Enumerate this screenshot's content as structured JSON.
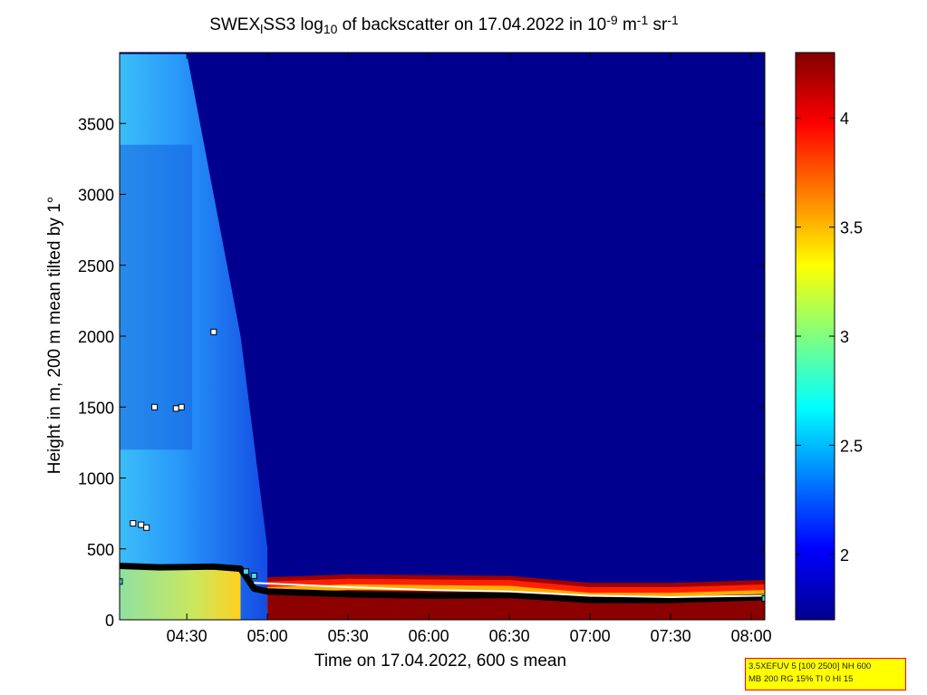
{
  "chart_data": {
    "type": "heatmap",
    "title_parts": [
      "SWEX",
      "l",
      "SS3 log",
      "10",
      " of backscatter on 17.04.2022 in 10",
      "-9",
      " m",
      "-1",
      " sr",
      "-1"
    ],
    "xlabel": "Time on 17.04.2022, 600 s mean",
    "ylabel": "Height in m, 200 m mean tilted by 1°",
    "xlim": [
      "04:05",
      "08:05"
    ],
    "ylim": [
      0,
      4000
    ],
    "x_ticks": [
      "04:30",
      "05:00",
      "05:30",
      "06:00",
      "06:30",
      "07:00",
      "07:30",
      "08:00"
    ],
    "y_ticks": [
      0,
      500,
      1000,
      1500,
      2000,
      2500,
      3000,
      3500
    ],
    "colorbar": {
      "range": [
        1.7,
        4.3
      ],
      "ticks": [
        "2",
        "2.5",
        "3",
        "3.5",
        "4"
      ],
      "colormap": "jet"
    },
    "background_value": 1.75,
    "aerosol_layer": {
      "description_free": true,
      "points": [
        {
          "t": "04:05",
          "top_m": 3990,
          "value": 2.6
        },
        {
          "t": "04:30",
          "top_m": 3990,
          "value": 2.45
        },
        {
          "t": "04:50",
          "top_m": 2000,
          "value": 2.2
        },
        {
          "t": "05:00",
          "top_m": 500,
          "value": 2.1
        }
      ]
    },
    "surface_layer": {
      "points": [
        {
          "t": "04:05",
          "height_m": 380,
          "value": 3.0
        },
        {
          "t": "04:50",
          "height_m": 370,
          "value": 3.2
        },
        {
          "t": "05:00",
          "height_m": 300,
          "value": 3.9
        },
        {
          "t": "05:30",
          "height_m": 320,
          "value": 4.0
        },
        {
          "t": "06:30",
          "height_m": 310,
          "value": 4.0
        },
        {
          "t": "07:00",
          "height_m": 260,
          "value": 4.1
        },
        {
          "t": "07:30",
          "height_m": 260,
          "value": 4.1
        },
        {
          "t": "08:05",
          "height_m": 280,
          "value": 4.1
        }
      ]
    },
    "markers": {
      "black_line": [
        {
          "t": "04:05",
          "h": 380
        },
        {
          "t": "04:20",
          "h": 370
        },
        {
          "t": "04:40",
          "h": 375
        },
        {
          "t": "04:50",
          "h": 360
        },
        {
          "t": "04:55",
          "h": 220
        },
        {
          "t": "05:00",
          "h": 200
        },
        {
          "t": "05:30",
          "h": 180
        },
        {
          "t": "06:00",
          "h": 170
        },
        {
          "t": "06:30",
          "h": 175
        },
        {
          "t": "07:00",
          "h": 140
        },
        {
          "t": "07:30",
          "h": 140
        },
        {
          "t": "08:05",
          "h": 160
        }
      ],
      "white_line": [
        {
          "t": "04:55",
          "h": 260
        },
        {
          "t": "05:30",
          "h": 230
        },
        {
          "t": "06:00",
          "h": 210
        },
        {
          "t": "06:30",
          "h": 200
        },
        {
          "t": "07:00",
          "h": 170
        },
        {
          "t": "07:30",
          "h": 160
        },
        {
          "t": "08:05",
          "h": 170
        }
      ],
      "white_squares": [
        {
          "t": "04:18",
          "h": 1500
        },
        {
          "t": "04:26",
          "h": 1490
        },
        {
          "t": "04:28",
          "h": 1500
        },
        {
          "t": "04:40",
          "h": 2030
        },
        {
          "t": "04:10",
          "h": 680
        },
        {
          "t": "04:13",
          "h": 670
        },
        {
          "t": "04:15",
          "h": 650
        }
      ],
      "cyan_squares": [
        {
          "t": "04:05",
          "h": 270
        },
        {
          "t": "04:52",
          "h": 340
        },
        {
          "t": "04:55",
          "h": 310
        },
        {
          "t": "08:05",
          "h": 150
        }
      ]
    }
  },
  "infobox": {
    "line1": "3.5XEFUV 5 [100 2500] NH 600",
    "line2": "MB 200 RG 15% TI 0 HI 15"
  }
}
